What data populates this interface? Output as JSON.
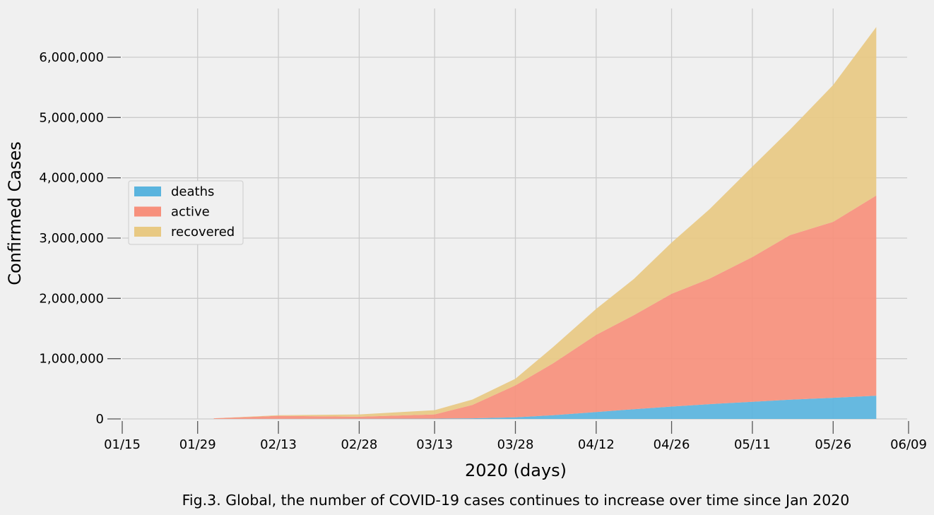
{
  "chart_data": {
    "type": "area",
    "stacked": true,
    "xlabel": "2020 (days)",
    "ylabel": "Confirmed Cases",
    "caption": "Fig.3. Global, the number of COVID-19 cases continues to increase over time since Jan 2020",
    "x_ticks": [
      "01/15",
      "01/29",
      "02/13",
      "02/28",
      "03/13",
      "03/28",
      "04/12",
      "04/26",
      "05/11",
      "05/26",
      "06/09"
    ],
    "y_ticks": [
      "0",
      "1,000,000",
      "2,000,000",
      "3,000,000",
      "4,000,000",
      "5,000,000",
      "6,000,000"
    ],
    "ylim": [
      0,
      6500000
    ],
    "grid": true,
    "legend_position": "center-left",
    "x": [
      "02/01",
      "02/13",
      "02/28",
      "03/13",
      "03/20",
      "03/28",
      "04/04",
      "04/12",
      "04/19",
      "04/26",
      "05/03",
      "05/11",
      "05/18",
      "05/26",
      "06/03"
    ],
    "series": [
      {
        "name": "deaths",
        "color": "#5ab4de",
        "values": [
          0,
          1400,
          2800,
          5000,
          11000,
          27000,
          62000,
          115000,
          162000,
          205000,
          245000,
          285000,
          320000,
          350000,
          385000
        ]
      },
      {
        "name": "active",
        "color": "#f7907c",
        "values": [
          10000,
          50000,
          33000,
          70000,
          220000,
          530000,
          860000,
          1280000,
          1560000,
          1870000,
          2080000,
          2400000,
          2730000,
          2920000,
          3320000
        ]
      },
      {
        "name": "recovered",
        "color": "#e8c983",
        "values": [
          0,
          10000,
          39000,
          70000,
          90000,
          110000,
          270000,
          430000,
          600000,
          850000,
          1150000,
          1500000,
          1750000,
          2270000,
          2795000
        ]
      }
    ]
  }
}
